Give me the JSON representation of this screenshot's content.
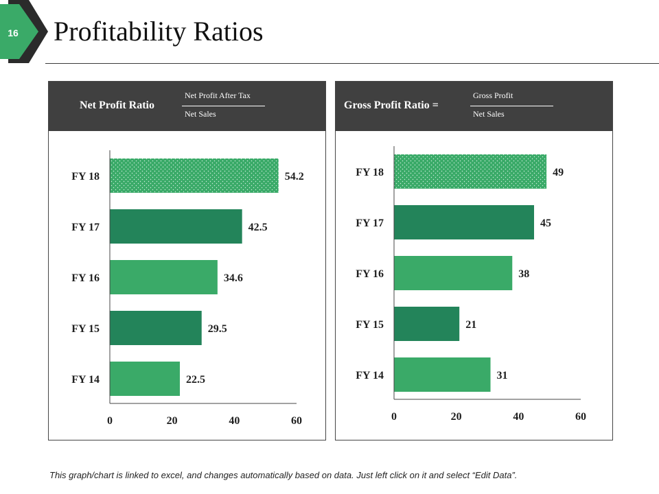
{
  "slide": {
    "number": "16",
    "title": "Profitability Ratios",
    "footnote": "This graph/chart is linked to excel, and changes automatically based on data. Just left click on it and select “Edit Data”."
  },
  "colors": {
    "badge_green": "#3aaa68",
    "badge_dark": "#2b2b2b",
    "header_bg": "#404040",
    "bar_light": "#3aaa68",
    "bar_dark": "#23845a",
    "axis": "#444444"
  },
  "panels": [
    {
      "ratio_name": "Net Profit Ratio",
      "numerator": "Net Profit After Tax",
      "denominator": "Net Sales"
    },
    {
      "ratio_name": "Gross Profit Ratio =",
      "numerator": "Gross Profit",
      "denominator": "Net Sales"
    }
  ],
  "chart_data": [
    {
      "type": "bar",
      "orientation": "horizontal",
      "categories": [
        "FY 18",
        "FY 17",
        "FY 16",
        "FY 15",
        "FY 14"
      ],
      "values": [
        54.2,
        42.5,
        34.6,
        29.5,
        22.5
      ],
      "data_labels": [
        "54.2",
        "42.5",
        "34.6",
        "29.5",
        "22.5"
      ],
      "bar_styles": [
        "dotted",
        "dark",
        "light",
        "dark",
        "light"
      ],
      "xlim": [
        0,
        60
      ],
      "xticks": [
        0,
        20,
        40,
        60
      ],
      "grid": false,
      "legend": "none"
    },
    {
      "type": "bar",
      "orientation": "horizontal",
      "categories": [
        "FY 18",
        "FY 17",
        "FY 16",
        "FY 15",
        "FY 14"
      ],
      "values": [
        49,
        45,
        38,
        21,
        31
      ],
      "data_labels": [
        "49",
        "45",
        "38",
        "21",
        "31"
      ],
      "bar_styles": [
        "dotted",
        "dark",
        "light",
        "dark",
        "light"
      ],
      "xlim": [
        0,
        60
      ],
      "xticks": [
        0,
        20,
        40,
        60
      ],
      "grid": false,
      "legend": "none"
    }
  ]
}
